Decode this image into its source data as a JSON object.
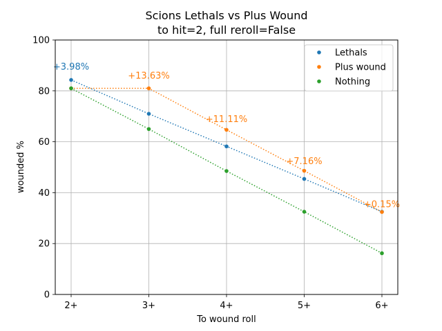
{
  "chart_data": {
    "type": "scatter",
    "title": "Scions Lethals vs Plus Wound",
    "subtitle": "to hit=2, full reroll=False",
    "xlabel": "To wound roll",
    "ylabel": "wounded %",
    "ylim": [
      0,
      100
    ],
    "yticks": [
      "0",
      "20",
      "40",
      "60",
      "80",
      "100"
    ],
    "categories": [
      "2+",
      "3+",
      "4+",
      "5+",
      "6+"
    ],
    "grid": true,
    "legend_position": "top-right",
    "series": [
      {
        "name": "Lethals",
        "color": "#1f77b4",
        "values": [
          84.3,
          71.0,
          58.2,
          45.4,
          32.5
        ]
      },
      {
        "name": "Plus wound",
        "color": "#ff7f0e",
        "values": [
          81.0,
          81.0,
          64.7,
          48.6,
          32.4
        ]
      },
      {
        "name": "Nothing",
        "color": "#2ca02c",
        "values": [
          81.0,
          65.0,
          48.5,
          32.5,
          16.2
        ]
      }
    ],
    "annotations": [
      {
        "text": "+3.98%",
        "category_index": 0,
        "y": 89.5,
        "color": "#1f77b4"
      },
      {
        "text": "+13.63%",
        "category_index": 1,
        "y": 86.0,
        "color": "#ff7f0e"
      },
      {
        "text": "+11.11%",
        "category_index": 2,
        "y": 69.0,
        "color": "#ff7f0e"
      },
      {
        "text": "+7.16%",
        "category_index": 3,
        "y": 52.5,
        "color": "#ff7f0e"
      },
      {
        "text": "+0.15%",
        "category_index": 4,
        "y": 35.5,
        "color": "#ff7f0e"
      }
    ]
  }
}
